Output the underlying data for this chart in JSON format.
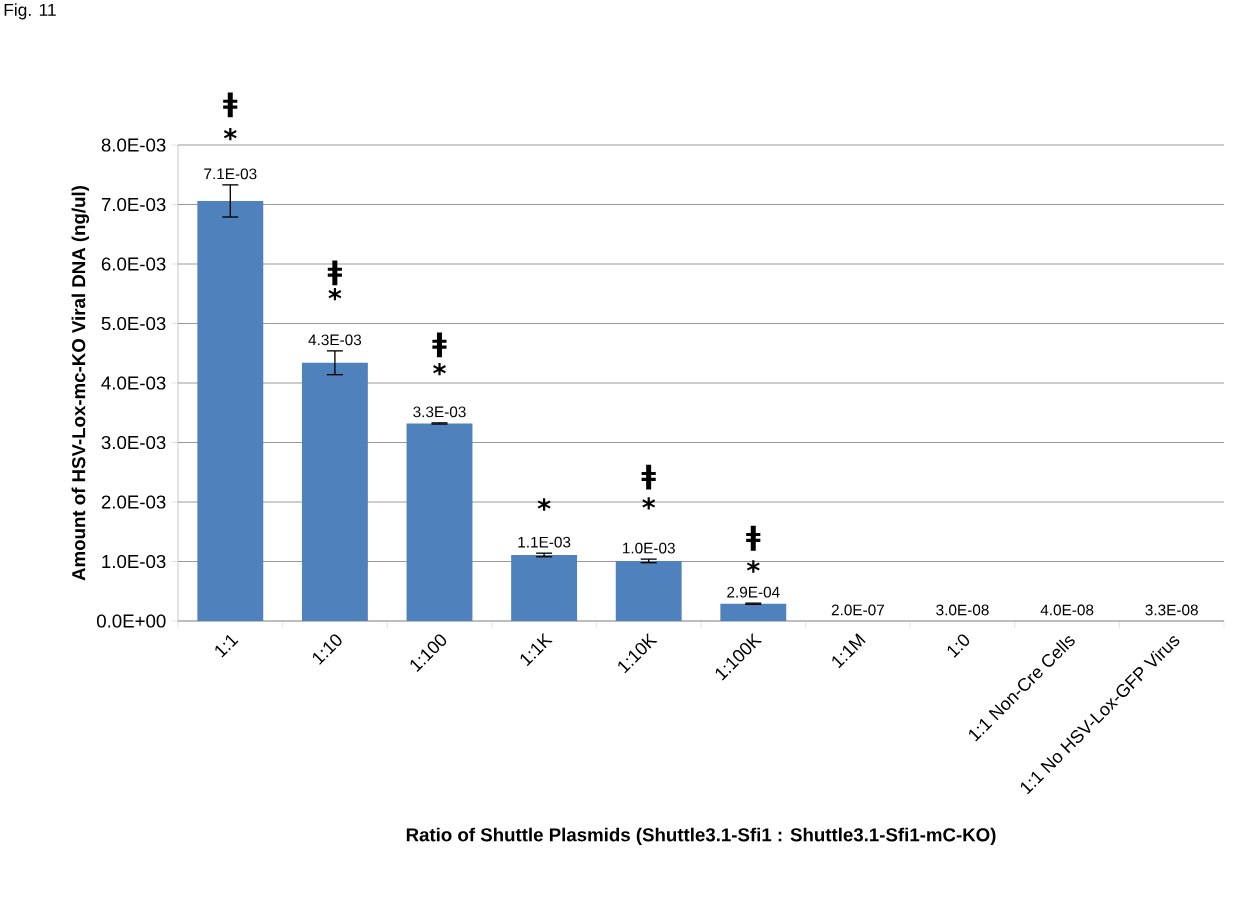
{
  "chart_data": {
    "type": "bar",
    "xlabel": "Ratio of Shuttle Plasmids (Shuttle3.1-Sfi1 : Shuttle3.1-Sfi1-mC-KO)",
    "ylabel": "Amount of HSV-Lox-mc-KO Viral DNA (ng/ul)",
    "categories": [
      "1:1",
      "1:10",
      "1:100",
      "1:1K",
      "1:10K",
      "1:100K",
      "1:1M",
      "1:0",
      "1:1 Non-Cre Cells",
      "1:1 No HSV-Lox-GFP Virus"
    ],
    "values": [
      0.00706,
      0.00434,
      0.00332,
      0.00111,
      0.00101,
      0.00029,
      2e-07,
      3e-08,
      4e-08,
      3.3e-08
    ],
    "errors": [
      0.00027,
      0.0002,
      1e-05,
      3e-05,
      3e-05,
      1e-05,
      null,
      null,
      null,
      null
    ],
    "value_labels": [
      "7.1E-03",
      "4.3E-03",
      "3.3E-03",
      "1.1E-03",
      "1.0E-03",
      "2.9E-04",
      "2.0E-07",
      "3.0E-08",
      "4.0E-08",
      "3.3E-08"
    ],
    "color": "#4f81bd",
    "ylim": [
      0,
      0.008
    ],
    "yticks": [
      {
        "value": 0,
        "label": "0.0E+00"
      },
      {
        "value": 0.001,
        "label": "1.0E-03"
      },
      {
        "value": 0.002,
        "label": "2.0E-03"
      },
      {
        "value": 0.003,
        "label": "3.0E-03"
      },
      {
        "value": 0.004,
        "label": "4.0E-03"
      },
      {
        "value": 0.005,
        "label": "5.0E-03"
      },
      {
        "value": 0.006,
        "label": "6.0E-03"
      },
      {
        "value": 0.007,
        "label": "7.0E-03"
      },
      {
        "value": 0.008,
        "label": "8.0E-03"
      }
    ],
    "grid": "y",
    "annotations": [
      "Fig. 11",
      "ǂ",
      "*",
      "ǂ",
      "*",
      "ǂ",
      "*",
      "*",
      "ǂ",
      "*",
      "ǂ",
      "*"
    ]
  }
}
